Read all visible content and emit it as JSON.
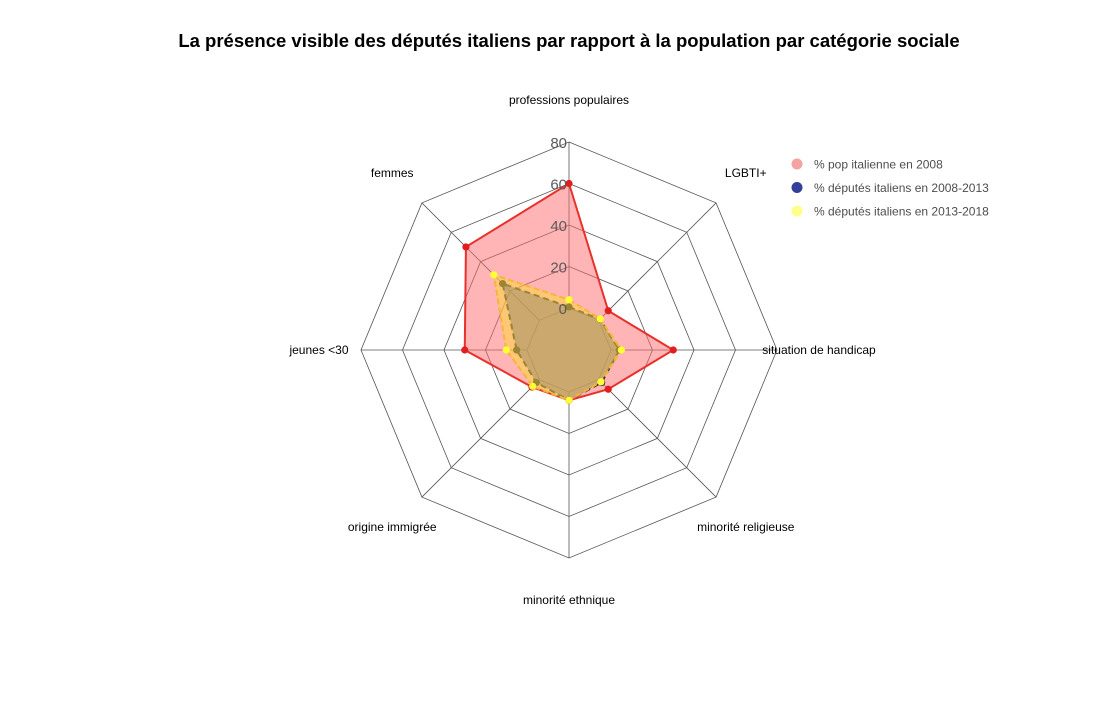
{
  "chart_data": {
    "type": "radar",
    "title": "La présence visible des députés italiens par rapport à la population par catégorie sociale",
    "axes": [
      "professions populaires",
      "LGBTI+",
      "situation de handicap",
      "minorité religieuse",
      "minorité ethnique",
      "origine immigrée",
      "jeunes <30",
      "femmes"
    ],
    "rlim": [
      0,
      80
    ],
    "ticks": [
      0,
      20,
      40,
      60,
      80
    ],
    "tick_labels": [
      "0",
      "20",
      "40",
      "60",
      "80"
    ],
    "grid": true,
    "legend_position": "top-right",
    "series": [
      {
        "name": "% pop italienne en 2008",
        "values": [
          60,
          6.5,
          30,
          6.5,
          4,
          5,
          30,
          50
        ],
        "line_color": "#e8312c",
        "fill_color": "#ff6b6b",
        "fill_opacity": 0.5,
        "point_color": "#e11d1d",
        "dash": "solid",
        "legend_color": "#f4a3a3"
      },
      {
        "name": "% députés italiens en 2008-2013",
        "values": [
          0.5,
          0.8,
          4,
          2,
          4,
          2,
          5,
          25
        ],
        "line_color": "#333333",
        "fill_color": "#2d3e9a",
        "fill_opacity": 0.5,
        "point_color": "#333333",
        "dash": "6,4",
        "legend_color": "#33409a"
      },
      {
        "name": "% députés italiens en 2013-2018",
        "values": [
          4,
          1,
          5,
          1.5,
          4,
          4.5,
          10,
          31
        ],
        "line_color": "#f5b733",
        "fill_color": "#ffd833",
        "fill_opacity": 0.5,
        "point_color": "#ffff33",
        "dash": "6,3",
        "legend_color": "#ffff8c"
      }
    ]
  }
}
